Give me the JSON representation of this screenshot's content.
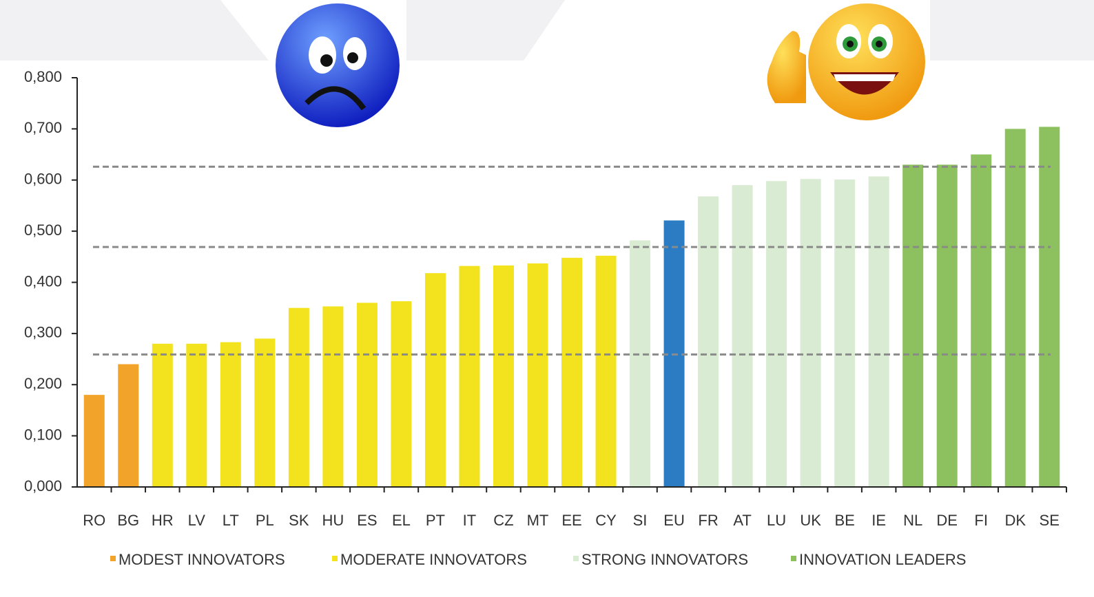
{
  "chart_data": {
    "type": "bar",
    "categories": [
      "RO",
      "BG",
      "HR",
      "LV",
      "LT",
      "PL",
      "SK",
      "HU",
      "ES",
      "EL",
      "PT",
      "IT",
      "CZ",
      "MT",
      "EE",
      "CY",
      "SI",
      "EU",
      "FR",
      "AT",
      "LU",
      "UK",
      "BE",
      "IE",
      "NL",
      "DE",
      "FI",
      "DK",
      "SE"
    ],
    "values": [
      0.18,
      0.24,
      0.28,
      0.28,
      0.283,
      0.29,
      0.35,
      0.353,
      0.36,
      0.363,
      0.418,
      0.432,
      0.433,
      0.437,
      0.448,
      0.452,
      0.482,
      0.521,
      0.568,
      0.59,
      0.598,
      0.602,
      0.601,
      0.607,
      0.63,
      0.63,
      0.65,
      0.7,
      0.704
    ],
    "colors": [
      "#f2a32a",
      "#f2a32a",
      "#f3e31f",
      "#f3e31f",
      "#f3e31f",
      "#f3e31f",
      "#f3e31f",
      "#f3e31f",
      "#f3e31f",
      "#f3e31f",
      "#f3e31f",
      "#f3e31f",
      "#f3e31f",
      "#f3e31f",
      "#f3e31f",
      "#f3e31f",
      "#d9ebd2",
      "#2b7cc2",
      "#d9ebd2",
      "#d9ebd2",
      "#d9ebd2",
      "#d9ebd2",
      "#d9ebd2",
      "#d9ebd2",
      "#8dc05e",
      "#8dc05e",
      "#8dc05e",
      "#8dc05e",
      "#8dc05e"
    ],
    "legend": [
      {
        "name": "MODEST INNOVATORS",
        "color": "#f2a32a"
      },
      {
        "name": "MODERATE INNOVATORS",
        "color": "#f3e31f"
      },
      {
        "name": "STRONG INNOVATORS",
        "color": "#d9ebd2"
      },
      {
        "name": "INNOVATION LEADERS",
        "color": "#8dc05e"
      }
    ],
    "reference_lines": [
      0.626,
      0.469,
      0.259
    ],
    "ylim": [
      0,
      0.8
    ],
    "yticks": [
      {
        "value": 0,
        "label": "0,000"
      },
      {
        "value": 0.1,
        "label": "0,100"
      },
      {
        "value": 0.2,
        "label": "0,200"
      },
      {
        "value": 0.3,
        "label": "0,300"
      },
      {
        "value": 0.4,
        "label": "0,400"
      },
      {
        "value": 0.5,
        "label": "0,500"
      },
      {
        "value": 0.6,
        "label": "0,600"
      },
      {
        "value": 0.7,
        "label": "0,700"
      },
      {
        "value": 0.8,
        "label": "0,800"
      }
    ]
  }
}
